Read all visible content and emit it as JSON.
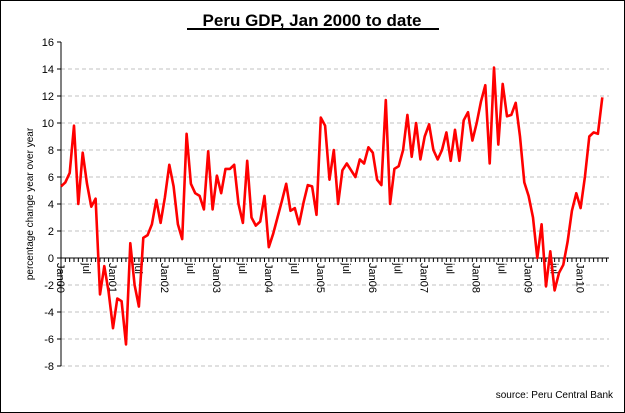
{
  "chart_data": {
    "type": "line",
    "title": "Peru GDP, Jan 2000 to date",
    "ylabel": "percentage change year over year",
    "xlabel": "",
    "source": "source: Peru Central Bank",
    "ylim": [
      -8,
      16
    ],
    "yticks": [
      -8,
      -6,
      -4,
      -2,
      0,
      2,
      4,
      6,
      8,
      10,
      12,
      14,
      16
    ],
    "grid": true,
    "x_start": "Jan 2000",
    "x_tick_labels": [
      "Jan00",
      "jul",
      "Jan01",
      "jul",
      "Jan02",
      "jul",
      "Jan03",
      "jul",
      "Jan04",
      "jul",
      "Jan05",
      "jul",
      "Jan06",
      "jul",
      "Jan07",
      "jul",
      "Jan08",
      "jul",
      "Jan09",
      "jul",
      "Jan10"
    ],
    "series": [
      {
        "name": "Peru GDP",
        "color": "#ff0000",
        "frequency": "monthly",
        "values": [
          5.3,
          5.6,
          6.3,
          9.8,
          4.0,
          7.8,
          5.5,
          3.8,
          4.4,
          -2.7,
          -0.6,
          -2.5,
          -5.2,
          -3.0,
          -3.2,
          -6.4,
          1.1,
          -2.0,
          -3.6,
          1.5,
          1.7,
          2.5,
          4.3,
          2.6,
          4.5,
          6.9,
          5.3,
          2.5,
          1.4,
          9.2,
          5.5,
          4.8,
          4.6,
          3.6,
          7.9,
          3.6,
          6.1,
          4.8,
          6.6,
          6.6,
          6.9,
          4.0,
          2.6,
          7.2,
          3.0,
          2.4,
          2.7,
          4.6,
          0.8,
          1.8,
          3.0,
          4.2,
          5.5,
          3.5,
          3.7,
          2.5,
          4.1,
          5.4,
          5.3,
          3.2,
          10.4,
          9.8,
          5.8,
          8.0,
          4.0,
          6.5,
          7.0,
          6.5,
          6.0,
          7.3,
          7.0,
          8.2,
          7.8,
          5.8,
          5.4,
          11.7,
          4.0,
          6.6,
          6.8,
          8.0,
          10.6,
          7.5,
          10.0,
          7.3,
          9.0,
          9.9,
          8.0,
          7.3,
          8.0,
          9.3,
          7.2,
          9.5,
          7.2,
          10.2,
          10.8,
          8.7,
          10.0,
          11.6,
          12.8,
          7.0,
          14.1,
          8.4,
          12.9,
          10.5,
          10.6,
          11.5,
          9.0,
          5.6,
          4.6,
          3.0,
          0.0,
          2.5,
          -2.1,
          0.5,
          -2.4,
          -1.1,
          -0.5,
          1.2,
          3.5,
          4.8,
          3.7,
          6.0,
          9.0,
          9.3,
          9.2,
          11.9
        ]
      }
    ]
  }
}
